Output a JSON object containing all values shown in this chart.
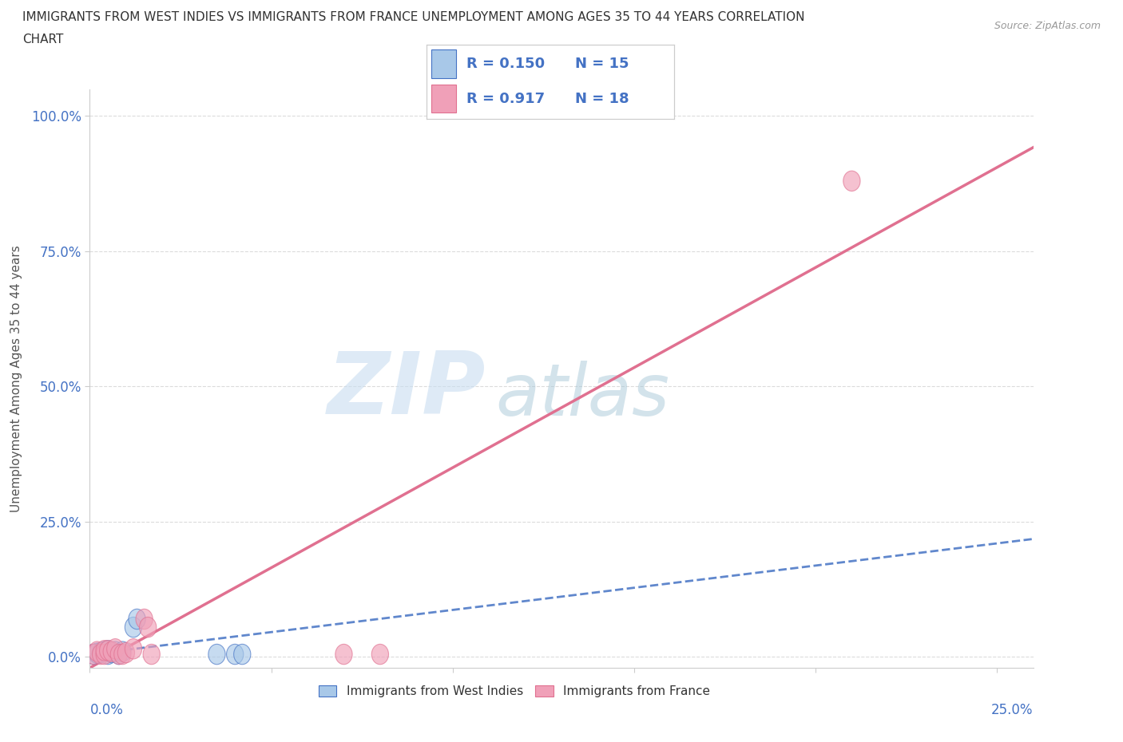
{
  "title_line1": "IMMIGRANTS FROM WEST INDIES VS IMMIGRANTS FROM FRANCE UNEMPLOYMENT AMONG AGES 35 TO 44 YEARS CORRELATION",
  "title_line2": "CHART",
  "source": "Source: ZipAtlas.com",
  "ylabel": "Unemployment Among Ages 35 to 44 years",
  "west_indies_color": "#a8c8e8",
  "france_color": "#f0a0b8",
  "west_indies_line_color": "#4472c4",
  "france_line_color": "#e07090",
  "R_west_indies": 0.15,
  "N_west_indies": 15,
  "R_france": 0.917,
  "N_france": 18,
  "west_indies_x": [
    0.001,
    0.002,
    0.003,
    0.004,
    0.005,
    0.005,
    0.006,
    0.007,
    0.008,
    0.009,
    0.012,
    0.013,
    0.035,
    0.04,
    0.042
  ],
  "west_indies_y": [
    0.005,
    0.007,
    0.008,
    0.01,
    0.005,
    0.012,
    0.008,
    0.01,
    0.005,
    0.01,
    0.055,
    0.07,
    0.005,
    0.005,
    0.005
  ],
  "france_x": [
    0.001,
    0.002,
    0.003,
    0.004,
    0.004,
    0.005,
    0.006,
    0.007,
    0.008,
    0.009,
    0.01,
    0.012,
    0.015,
    0.016,
    0.017,
    0.07,
    0.08,
    0.21
  ],
  "france_y": [
    0.005,
    0.01,
    0.005,
    0.005,
    0.012,
    0.012,
    0.01,
    0.015,
    0.005,
    0.005,
    0.008,
    0.015,
    0.07,
    0.055,
    0.005,
    0.005,
    0.005,
    0.88
  ],
  "yticks": [
    0.0,
    0.25,
    0.5,
    0.75,
    1.0
  ],
  "ytick_labels": [
    "0.0%",
    "25.0%",
    "50.0%",
    "75.0%",
    "100.0%"
  ],
  "xlim": [
    0.0,
    0.26
  ],
  "ylim": [
    -0.02,
    1.05
  ],
  "watermark_zip": "ZIP",
  "watermark_atlas": "atlas",
  "watermark_color_zip": "#c8ddf0",
  "watermark_color_atlas": "#a8c8d8",
  "legend_color": "#4472c4",
  "bg_color": "#ffffff",
  "grid_color": "#cccccc"
}
